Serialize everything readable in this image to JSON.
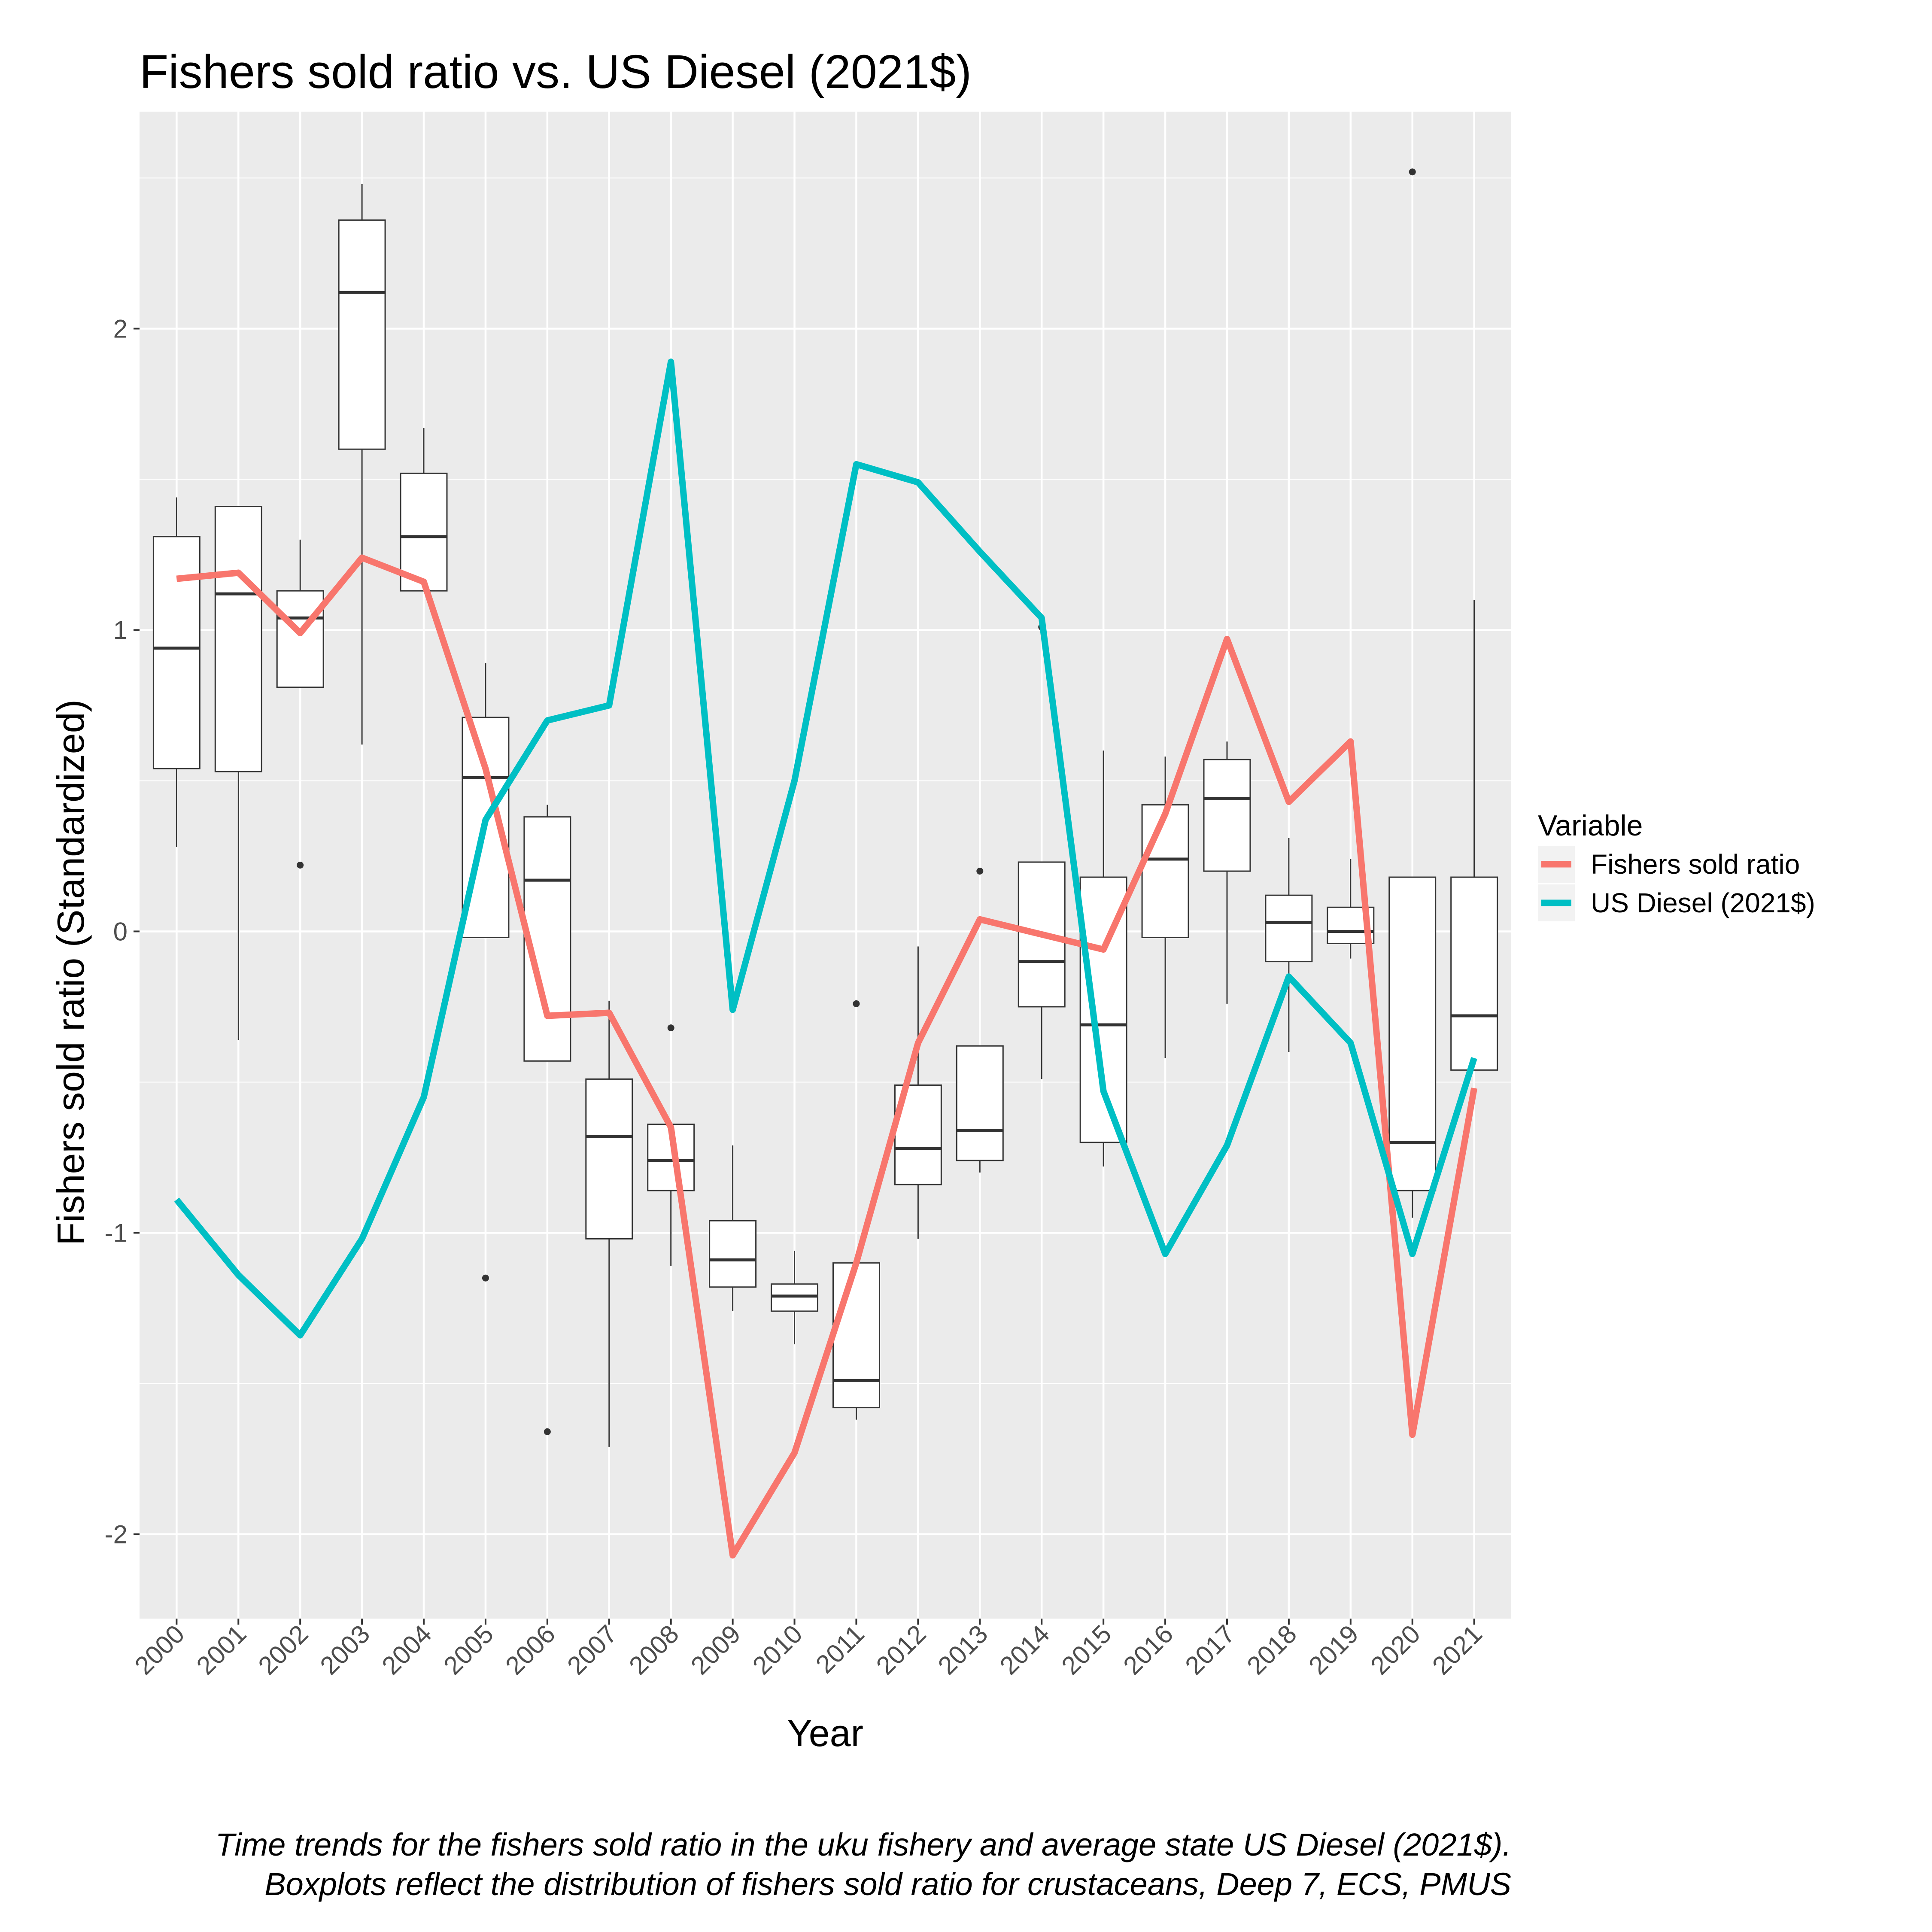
{
  "chart_data": {
    "type": "line",
    "title": "Fishers sold ratio vs. US Diesel (2021$)",
    "xlabel": "Year",
    "ylabel": "Fishers sold ratio (Standardized)",
    "ylim": [
      -2.28,
      2.72
    ],
    "y_ticks": [
      -2,
      -1,
      0,
      1,
      2
    ],
    "y_tick_labels": [
      "-2",
      "-1",
      "0",
      "1",
      "2"
    ],
    "categories": [
      "2000",
      "2001",
      "2002",
      "2003",
      "2004",
      "2005",
      "2006",
      "2007",
      "2008",
      "2009",
      "2010",
      "2011",
      "2012",
      "2013",
      "2014",
      "2015",
      "2016",
      "2017",
      "2018",
      "2019",
      "2020",
      "2021"
    ],
    "grid": true,
    "legend": {
      "title": "Variable",
      "position": "right"
    },
    "series": [
      {
        "name": "Fishers sold ratio",
        "color": "#F8766D",
        "values": [
          1.17,
          1.19,
          0.99,
          1.24,
          1.16,
          0.54,
          -0.28,
          -0.27,
          -0.65,
          -2.07,
          -1.73,
          -1.1,
          -0.37,
          0.04,
          -0.01,
          -0.06,
          0.39,
          0.97,
          0.43,
          0.63,
          -1.67,
          -0.52
        ]
      },
      {
        "name": "US Diesel (2021$)",
        "color": "#00BFC4",
        "values": [
          -0.89,
          -1.14,
          -1.34,
          -1.02,
          -0.55,
          0.37,
          0.7,
          0.75,
          1.89,
          -0.26,
          0.5,
          1.55,
          1.49,
          1.26,
          1.04,
          -0.53,
          -1.07,
          -0.71,
          -0.15,
          -0.37,
          -1.07,
          -0.42
        ]
      }
    ],
    "boxplots": [
      {
        "x": "2000",
        "lower": 0.28,
        "q1": 0.54,
        "median": 0.94,
        "q3": 1.31,
        "upper": 1.44,
        "outliers": []
      },
      {
        "x": "2001",
        "lower": -0.36,
        "q1": 0.53,
        "median": 1.12,
        "q3": 1.41,
        "upper": 1.41,
        "outliers": []
      },
      {
        "x": "2002",
        "lower": 0.81,
        "q1": 0.81,
        "median": 1.04,
        "q3": 1.13,
        "upper": 1.3,
        "outliers": [
          0.22
        ]
      },
      {
        "x": "2003",
        "lower": 0.62,
        "q1": 1.6,
        "median": 2.12,
        "q3": 2.36,
        "upper": 2.48,
        "outliers": []
      },
      {
        "x": "2004",
        "lower": 1.13,
        "q1": 1.13,
        "median": 1.31,
        "q3": 1.52,
        "upper": 1.67,
        "outliers": []
      },
      {
        "x": "2005",
        "lower": -0.02,
        "q1": -0.02,
        "median": 0.51,
        "q3": 0.71,
        "upper": 0.89,
        "outliers": [
          -1.15
        ]
      },
      {
        "x": "2006",
        "lower": -0.43,
        "q1": -0.43,
        "median": 0.17,
        "q3": 0.38,
        "upper": 0.42,
        "outliers": [
          -1.66
        ]
      },
      {
        "x": "2007",
        "lower": -1.71,
        "q1": -1.02,
        "median": -0.68,
        "q3": -0.49,
        "upper": -0.23,
        "outliers": []
      },
      {
        "x": "2008",
        "lower": -1.11,
        "q1": -0.86,
        "median": -0.76,
        "q3": -0.64,
        "upper": -0.64,
        "outliers": [
          -0.32
        ]
      },
      {
        "x": "2009",
        "lower": -1.26,
        "q1": -1.18,
        "median": -1.09,
        "q3": -0.96,
        "upper": -0.71,
        "outliers": []
      },
      {
        "x": "2010",
        "lower": -1.37,
        "q1": -1.26,
        "median": -1.21,
        "q3": -1.17,
        "upper": -1.06,
        "outliers": []
      },
      {
        "x": "2011",
        "lower": -1.62,
        "q1": -1.58,
        "median": -1.49,
        "q3": -1.1,
        "upper": -1.1,
        "outliers": [
          -0.24
        ]
      },
      {
        "x": "2012",
        "lower": -1.02,
        "q1": -0.84,
        "median": -0.72,
        "q3": -0.51,
        "upper": -0.05,
        "outliers": []
      },
      {
        "x": "2013",
        "lower": -0.8,
        "q1": -0.76,
        "median": -0.66,
        "q3": -0.38,
        "upper": -0.38,
        "outliers": [
          0.2
        ]
      },
      {
        "x": "2014",
        "lower": -0.49,
        "q1": -0.25,
        "median": -0.1,
        "q3": 0.23,
        "upper": 0.23,
        "outliers": [
          1.01
        ]
      },
      {
        "x": "2015",
        "lower": -0.78,
        "q1": -0.7,
        "median": -0.31,
        "q3": 0.18,
        "upper": 0.6,
        "outliers": []
      },
      {
        "x": "2016",
        "lower": -0.42,
        "q1": -0.02,
        "median": 0.24,
        "q3": 0.42,
        "upper": 0.58,
        "outliers": []
      },
      {
        "x": "2017",
        "lower": -0.24,
        "q1": 0.2,
        "median": 0.44,
        "q3": 0.57,
        "upper": 0.63,
        "outliers": []
      },
      {
        "x": "2018",
        "lower": -0.4,
        "q1": -0.1,
        "median": 0.03,
        "q3": 0.12,
        "upper": 0.31,
        "outliers": []
      },
      {
        "x": "2019",
        "lower": -0.09,
        "q1": -0.04,
        "median": 0.0,
        "q3": 0.08,
        "upper": 0.24,
        "outliers": []
      },
      {
        "x": "2020",
        "lower": -0.95,
        "q1": -0.86,
        "median": -0.7,
        "q3": 0.18,
        "upper": 0.18,
        "outliers": [
          2.52
        ]
      },
      {
        "x": "2021",
        "lower": -0.46,
        "q1": -0.46,
        "median": -0.28,
        "q3": 0.18,
        "upper": 1.1,
        "outliers": []
      }
    ],
    "caption_lines": [
      "Time trends for the fishers sold ratio in the uku fishery and average state US Diesel (2021$).",
      " Boxplots reflect the distribution of fishers sold ratio for crustaceans, Deep 7, ECS, PMUS"
    ]
  }
}
